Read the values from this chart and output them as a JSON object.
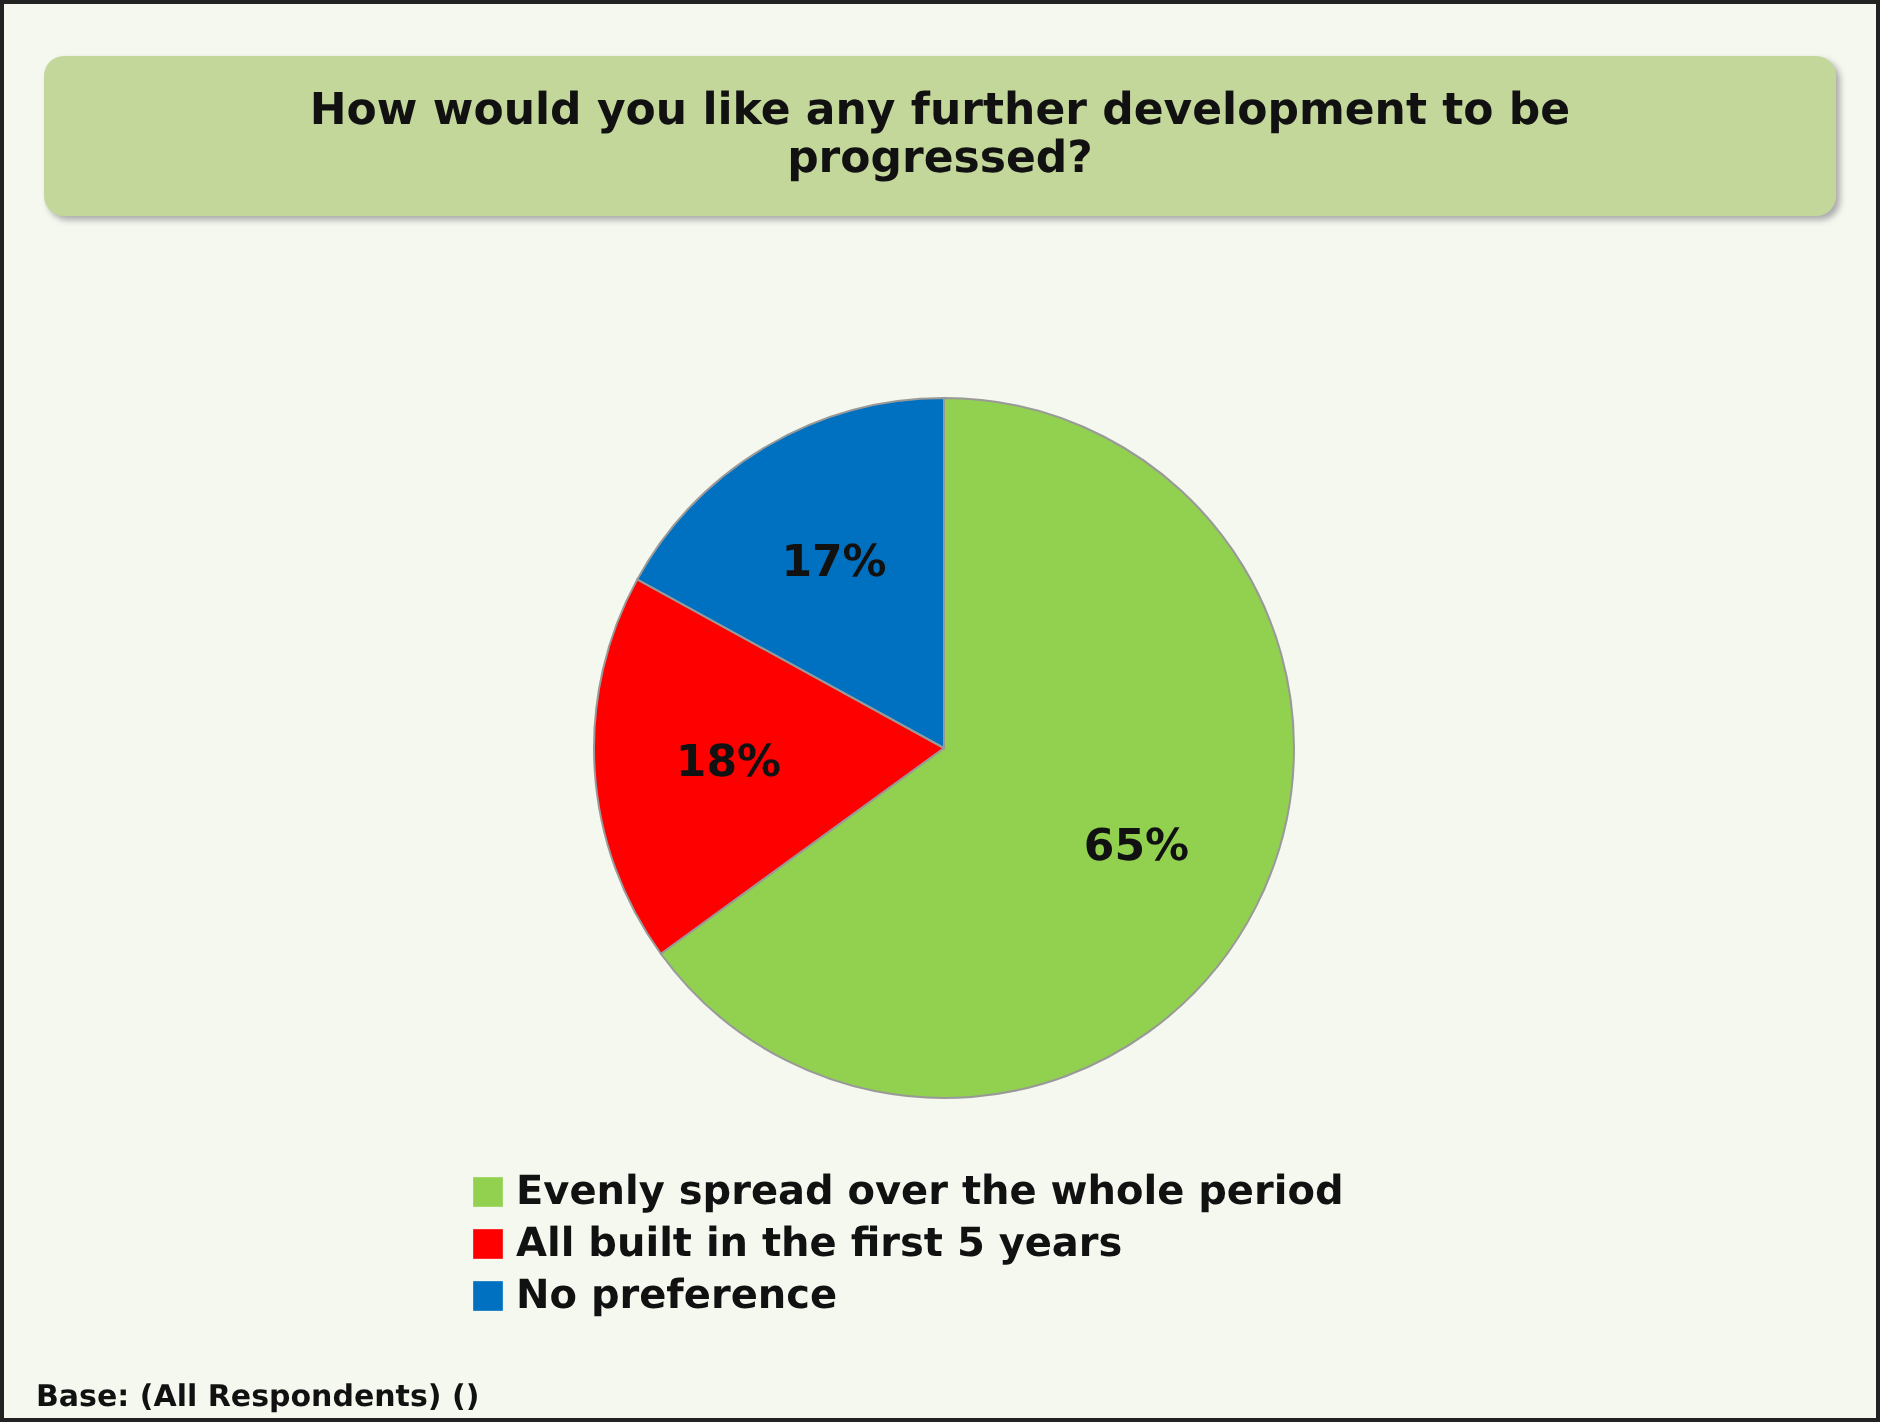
{
  "chart_data": {
    "type": "pie",
    "title": "How would you like any further development to be progressed?",
    "categories": [
      "Evenly spread over the whole period",
      "All built in the first 5 years",
      "No preference"
    ],
    "values": [
      65,
      18,
      17
    ],
    "colors": [
      "#92d050",
      "#ff0000",
      "#0070c0"
    ],
    "value_labels": [
      "65%",
      "18%",
      "17%"
    ],
    "legend": "bottom",
    "annotations": [
      "Base: (All Respondents) ()"
    ]
  }
}
